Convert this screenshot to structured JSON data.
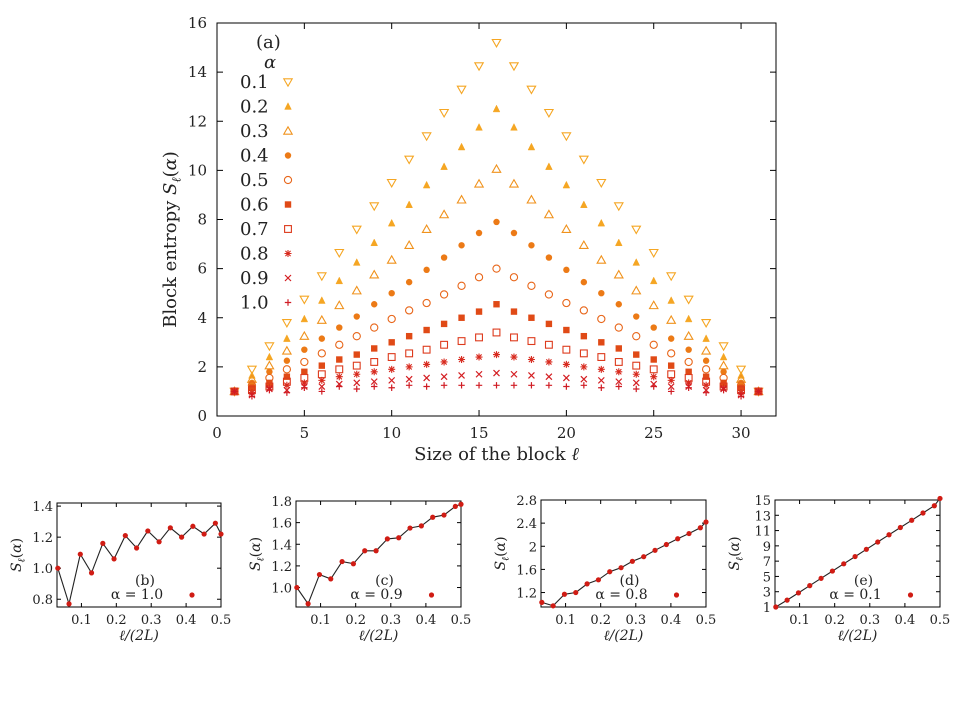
{
  "chart_data": [
    {
      "type": "scatter",
      "panel_label": "(a)",
      "xlabel": "Size of the block ℓ",
      "ylabel": "Block entropy S_ℓ(α)",
      "xlim": [
        0,
        32
      ],
      "ylim": [
        0,
        16
      ],
      "xticks": [
        0,
        5,
        10,
        15,
        20,
        25,
        30
      ],
      "yticks": [
        0,
        2,
        4,
        6,
        8,
        10,
        12,
        14,
        16
      ],
      "legend_title": "α",
      "legend_position": "top-left",
      "x": [
        1,
        2,
        3,
        4,
        5,
        6,
        7,
        8,
        9,
        10,
        11,
        12,
        13,
        14,
        15,
        16,
        17,
        18,
        19,
        20,
        21,
        22,
        23,
        24,
        25,
        26,
        27,
        28,
        29,
        30,
        31
      ],
      "series": [
        {
          "name": "0.1",
          "marker": "triangle-down-open",
          "color": "#f5a623",
          "values": [
            1.0,
            1.9,
            2.85,
            3.8,
            4.75,
            5.7,
            6.65,
            7.6,
            8.55,
            9.5,
            10.45,
            11.4,
            12.35,
            13.3,
            14.25,
            15.2,
            14.25,
            13.3,
            12.35,
            11.4,
            10.45,
            9.5,
            8.55,
            7.6,
            6.65,
            5.7,
            4.75,
            3.8,
            2.85,
            1.9,
            1.0
          ]
        },
        {
          "name": "0.2",
          "marker": "triangle-up-filled",
          "color": "#f5a623",
          "values": [
            1.0,
            1.65,
            2.4,
            3.15,
            3.95,
            4.7,
            5.5,
            6.25,
            7.05,
            7.85,
            8.6,
            9.4,
            10.15,
            10.95,
            11.75,
            12.5,
            11.75,
            10.95,
            10.15,
            9.4,
            8.6,
            7.85,
            7.05,
            6.25,
            5.5,
            4.7,
            3.95,
            3.15,
            2.4,
            1.65,
            1.0
          ]
        },
        {
          "name": "0.3",
          "marker": "triangle-up-open",
          "color": "#f0921c",
          "values": [
            1.0,
            1.5,
            2.05,
            2.65,
            3.25,
            3.9,
            4.5,
            5.1,
            5.75,
            6.35,
            6.95,
            7.6,
            8.2,
            8.8,
            9.45,
            10.05,
            9.45,
            8.8,
            8.2,
            7.6,
            6.95,
            6.35,
            5.75,
            5.1,
            4.5,
            3.9,
            3.25,
            2.65,
            2.05,
            1.5,
            1.0
          ]
        },
        {
          "name": "0.4",
          "marker": "circle-filled",
          "color": "#ec7a16",
          "values": [
            1.0,
            1.35,
            1.8,
            2.25,
            2.7,
            3.15,
            3.6,
            4.05,
            4.55,
            5.0,
            5.45,
            5.95,
            6.45,
            6.95,
            7.45,
            7.9,
            7.45,
            6.95,
            6.45,
            5.95,
            5.45,
            5.0,
            4.55,
            4.05,
            3.6,
            3.15,
            2.7,
            2.25,
            1.8,
            1.35,
            1.0
          ]
        },
        {
          "name": "0.5",
          "marker": "circle-open",
          "color": "#e8661a",
          "values": [
            1.0,
            1.25,
            1.55,
            1.9,
            2.2,
            2.55,
            2.9,
            3.25,
            3.6,
            3.95,
            4.3,
            4.6,
            4.95,
            5.3,
            5.65,
            6.0,
            5.65,
            5.3,
            4.95,
            4.6,
            4.3,
            3.95,
            3.6,
            3.25,
            2.9,
            2.55,
            2.2,
            1.9,
            1.55,
            1.25,
            1.0
          ]
        },
        {
          "name": "0.6",
          "marker": "square-filled",
          "color": "#e04a16",
          "values": [
            1.0,
            1.15,
            1.35,
            1.6,
            1.8,
            2.05,
            2.3,
            2.5,
            2.75,
            3.0,
            3.25,
            3.5,
            3.75,
            4.0,
            4.25,
            4.55,
            4.25,
            4.0,
            3.75,
            3.5,
            3.25,
            3.0,
            2.75,
            2.5,
            2.3,
            2.05,
            1.8,
            1.6,
            1.35,
            1.15,
            1.0
          ]
        },
        {
          "name": "0.7",
          "marker": "square-open",
          "color": "#dd3a1c",
          "values": [
            1.0,
            1.05,
            1.2,
            1.4,
            1.55,
            1.7,
            1.9,
            2.05,
            2.2,
            2.4,
            2.55,
            2.7,
            2.9,
            3.05,
            3.2,
            3.4,
            3.2,
            3.05,
            2.9,
            2.7,
            2.55,
            2.4,
            2.2,
            2.05,
            1.9,
            1.7,
            1.55,
            1.4,
            1.2,
            1.05,
            1.0
          ]
        },
        {
          "name": "0.8",
          "marker": "asterisk",
          "color": "#d82a1e",
          "values": [
            1.0,
            0.95,
            1.15,
            1.25,
            1.35,
            1.45,
            1.6,
            1.7,
            1.8,
            1.9,
            2.0,
            2.1,
            2.2,
            2.3,
            2.4,
            2.5,
            2.4,
            2.3,
            2.2,
            2.1,
            2.0,
            1.9,
            1.8,
            1.7,
            1.6,
            1.45,
            1.35,
            1.25,
            1.15,
            0.95,
            1.0
          ]
        },
        {
          "name": "0.9",
          "marker": "cross",
          "color": "#d41e22",
          "values": [
            1.0,
            0.85,
            1.1,
            1.05,
            1.2,
            1.2,
            1.3,
            1.35,
            1.4,
            1.45,
            1.5,
            1.55,
            1.6,
            1.65,
            1.7,
            1.75,
            1.7,
            1.65,
            1.6,
            1.55,
            1.5,
            1.45,
            1.4,
            1.35,
            1.3,
            1.2,
            1.2,
            1.05,
            1.1,
            0.85,
            1.0
          ]
        },
        {
          "name": "1.0",
          "marker": "plus",
          "color": "#d01c24",
          "values": [
            1.0,
            0.8,
            1.05,
            0.95,
            1.15,
            1.0,
            1.2,
            1.1,
            1.2,
            1.15,
            1.25,
            1.2,
            1.25,
            1.25,
            1.25,
            1.25,
            1.25,
            1.25,
            1.25,
            1.2,
            1.25,
            1.15,
            1.2,
            1.1,
            1.2,
            1.0,
            1.15,
            0.95,
            1.05,
            0.8,
            1.0
          ]
        }
      ]
    },
    {
      "type": "line",
      "panel_label": "(b)",
      "annotation": "α = 1.0",
      "xlabel": "ℓ/(2L)",
      "ylabel": "S_ℓ(α)",
      "xlim": [
        0.03,
        0.5
      ],
      "ylim": [
        0.75,
        1.42
      ],
      "xticks": [
        0.1,
        0.2,
        0.3,
        0.4,
        0.5
      ],
      "yticks": [
        0.8,
        1.0,
        1.2,
        1.4
      ],
      "ytick_labels": [
        "0.8",
        "1.0",
        "1.2",
        "1.4"
      ],
      "x": [
        0.0323,
        0.0645,
        0.0968,
        0.129,
        0.1613,
        0.1935,
        0.2258,
        0.2581,
        0.2903,
        0.3226,
        0.3548,
        0.3871,
        0.4194,
        0.4516,
        0.4839,
        0.5
      ],
      "values": [
        1.0,
        0.77,
        1.09,
        0.97,
        1.16,
        1.06,
        1.21,
        1.13,
        1.24,
        1.17,
        1.26,
        1.2,
        1.27,
        1.22,
        1.29,
        1.22
      ]
    },
    {
      "type": "line",
      "panel_label": "(c)",
      "annotation": "α = 0.9",
      "xlabel": "ℓ/(2L)",
      "ylabel": "S_ℓ(α)",
      "xlim": [
        0.03,
        0.5
      ],
      "ylim": [
        0.82,
        1.8
      ],
      "xticks": [
        0.1,
        0.2,
        0.3,
        0.4,
        0.5
      ],
      "yticks": [
        1.0,
        1.2,
        1.4,
        1.6,
        1.8
      ],
      "ytick_labels": [
        "1.0",
        "1.2",
        "1.4",
        "1.6",
        "1.8"
      ],
      "x": [
        0.0323,
        0.0645,
        0.0968,
        0.129,
        0.1613,
        0.1935,
        0.2258,
        0.2581,
        0.2903,
        0.3226,
        0.3548,
        0.3871,
        0.4194,
        0.4516,
        0.4839,
        0.5
      ],
      "values": [
        1.0,
        0.85,
        1.12,
        1.08,
        1.24,
        1.22,
        1.34,
        1.34,
        1.45,
        1.46,
        1.55,
        1.57,
        1.65,
        1.67,
        1.75,
        1.77
      ]
    },
    {
      "type": "line",
      "panel_label": "(d)",
      "annotation": "α = 0.8",
      "xlabel": "ℓ/(2L)",
      "ylabel": "S_ℓ(α)",
      "xlim": [
        0.03,
        0.5
      ],
      "ylim": [
        0.95,
        2.8
      ],
      "xticks": [
        0.1,
        0.2,
        0.3,
        0.4,
        0.5
      ],
      "yticks": [
        1.2,
        1.6,
        2.0,
        2.4,
        2.8
      ],
      "ytick_labels": [
        "1.2",
        "1.6",
        "2",
        "2.4",
        "2.8"
      ],
      "x": [
        0.0323,
        0.0645,
        0.0968,
        0.129,
        0.1613,
        0.1935,
        0.2258,
        0.2581,
        0.2903,
        0.3226,
        0.3548,
        0.3871,
        0.4194,
        0.4516,
        0.4839,
        0.5
      ],
      "values": [
        1.03,
        0.97,
        1.17,
        1.2,
        1.35,
        1.42,
        1.56,
        1.63,
        1.74,
        1.82,
        1.93,
        2.03,
        2.13,
        2.22,
        2.32,
        2.42
      ]
    },
    {
      "type": "line",
      "panel_label": "(e)",
      "annotation": "α = 0.1",
      "xlabel": "ℓ/(2L)",
      "ylabel": "S_ℓ(α)",
      "xlim": [
        0.03,
        0.5
      ],
      "ylim": [
        1,
        15
      ],
      "xticks": [
        0.1,
        0.2,
        0.3,
        0.4,
        0.5
      ],
      "yticks": [
        1,
        3,
        5,
        7,
        9,
        11,
        13,
        15
      ],
      "ytick_labels": [
        "1",
        "3",
        "5",
        "7",
        "9",
        "11",
        "13",
        "15"
      ],
      "x": [
        0.0323,
        0.0645,
        0.0968,
        0.129,
        0.1613,
        0.1935,
        0.2258,
        0.2581,
        0.2903,
        0.3226,
        0.3548,
        0.3871,
        0.4194,
        0.4516,
        0.4839,
        0.5
      ],
      "values": [
        1.0,
        1.9,
        2.85,
        3.8,
        4.75,
        5.7,
        6.65,
        7.6,
        8.55,
        9.5,
        10.45,
        11.4,
        12.35,
        13.3,
        14.25,
        15.2
      ]
    }
  ]
}
